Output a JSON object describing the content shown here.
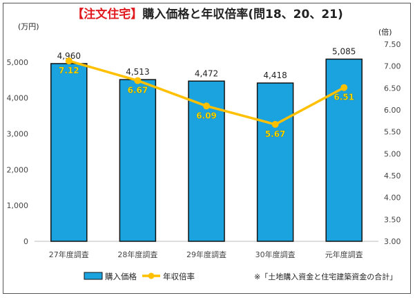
{
  "title": {
    "highlight": "【注文住宅】",
    "main": "購入価格と年収倍率(問18、20、21)"
  },
  "chart_data": {
    "type": "bar",
    "categories": [
      "27年度調査",
      "28年度調査",
      "29年度調査",
      "30年度調査",
      "元年度調査"
    ],
    "series": [
      {
        "name": "購入価格",
        "kind": "bar",
        "axis": "left",
        "color": "#1aa3de",
        "values": [
          4960,
          4513,
          4472,
          4418,
          5085
        ],
        "labels": [
          "4,960",
          "4,513",
          "4,472",
          "4,418",
          "5,085"
        ]
      },
      {
        "name": "年収倍率",
        "kind": "line",
        "axis": "right",
        "color": "#ffc000",
        "values": [
          7.12,
          6.67,
          6.09,
          5.67,
          6.51
        ],
        "labels": [
          "7.12",
          "6.67",
          "6.09",
          "5.67",
          "6.51"
        ]
      }
    ],
    "left_axis": {
      "unit": "(万円)",
      "ylim": [
        0,
        5500
      ],
      "ticks": [
        0,
        1000,
        2000,
        3000,
        4000,
        5000
      ],
      "tick_labels": [
        "0",
        "1,000",
        "2,000",
        "3,000",
        "4,000",
        "5,000"
      ]
    },
    "right_axis": {
      "unit": "(倍)",
      "ylim": [
        3.0,
        7.5
      ],
      "ticks": [
        3.0,
        3.5,
        4.0,
        4.5,
        5.0,
        5.5,
        6.0,
        6.5,
        7.0,
        7.5
      ],
      "tick_labels": [
        "3.00",
        "3.50",
        "4.00",
        "4.50",
        "5.00",
        "5.50",
        "6.00",
        "6.50",
        "7.00",
        "7.50"
      ]
    },
    "grid": false,
    "legend": "bottom-left",
    "note": "※「土地購入資金と住宅建築資金の合計」"
  }
}
